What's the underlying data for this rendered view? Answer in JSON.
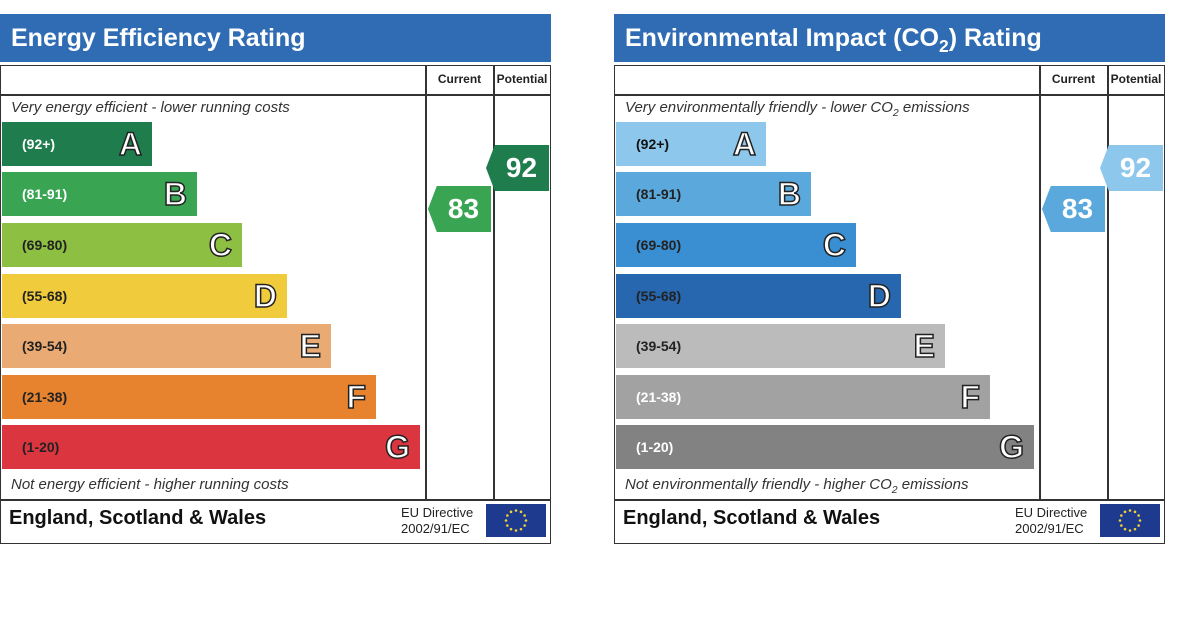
{
  "chart_data": [
    {
      "type": "bar",
      "title": "Energy Efficiency Rating",
      "column_headers": [
        "Current",
        "Potential"
      ],
      "top_note": "Very energy efficient - lower running costs",
      "bottom_note": "Not energy efficient - higher running costs",
      "bands": [
        {
          "range": "(92+)",
          "letter": "A",
          "color": "#1f7d4d",
          "text_color": "#ffffff"
        },
        {
          "range": "(81-91)",
          "letter": "B",
          "color": "#39a553",
          "text_color": "#ffffff"
        },
        {
          "range": "(69-80)",
          "letter": "C",
          "color": "#8dbf43",
          "text_color": "#222222"
        },
        {
          "range": "(55-68)",
          "letter": "D",
          "color": "#f0cb3b",
          "text_color": "#222222"
        },
        {
          "range": "(39-54)",
          "letter": "E",
          "color": "#eaaa73",
          "text_color": "#222222"
        },
        {
          "range": "(21-38)",
          "letter": "F",
          "color": "#e7832f",
          "text_color": "#222222"
        },
        {
          "range": "(1-20)",
          "letter": "G",
          "color": "#db3540",
          "text_color": "#222222"
        }
      ],
      "current": {
        "value": "83",
        "band": "B",
        "color": "#39a553"
      },
      "potential": {
        "value": "92",
        "band": "A",
        "color": "#1f7d4d"
      },
      "region": "England, Scotland & Wales",
      "directive": [
        "EU Directive",
        "2002/91/EC"
      ]
    },
    {
      "type": "bar",
      "title": "Environmental Impact (CO2) Rating",
      "column_headers": [
        "Current",
        "Potential"
      ],
      "top_note": "Very environmentally friendly - lower CO2 emissions",
      "bottom_note": "Not environmentally friendly - higher CO2 emissions",
      "bands": [
        {
          "range": "(92+)",
          "letter": "A",
          "color": "#8ec7ec",
          "text_color": "#111111"
        },
        {
          "range": "(81-91)",
          "letter": "B",
          "color": "#5aa8dc",
          "text_color": "#222222"
        },
        {
          "range": "(69-80)",
          "letter": "C",
          "color": "#3a8ed2",
          "text_color": "#222222"
        },
        {
          "range": "(55-68)",
          "letter": "D",
          "color": "#2667b0",
          "text_color": "#222222"
        },
        {
          "range": "(39-54)",
          "letter": "E",
          "color": "#bbbbbb",
          "text_color": "#222222"
        },
        {
          "range": "(21-38)",
          "letter": "F",
          "color": "#a2a2a2",
          "text_color": "#ffffff"
        },
        {
          "range": "(1-20)",
          "letter": "G",
          "color": "#828282",
          "text_color": "#ffffff"
        }
      ],
      "current": {
        "value": "83",
        "band": "B",
        "color": "#5aa8dc"
      },
      "potential": {
        "value": "92",
        "band": "A",
        "color": "#8ec7ec"
      },
      "region": "England, Scotland & Wales",
      "directive": [
        "EU Directive",
        "2002/91/EC"
      ]
    }
  ]
}
